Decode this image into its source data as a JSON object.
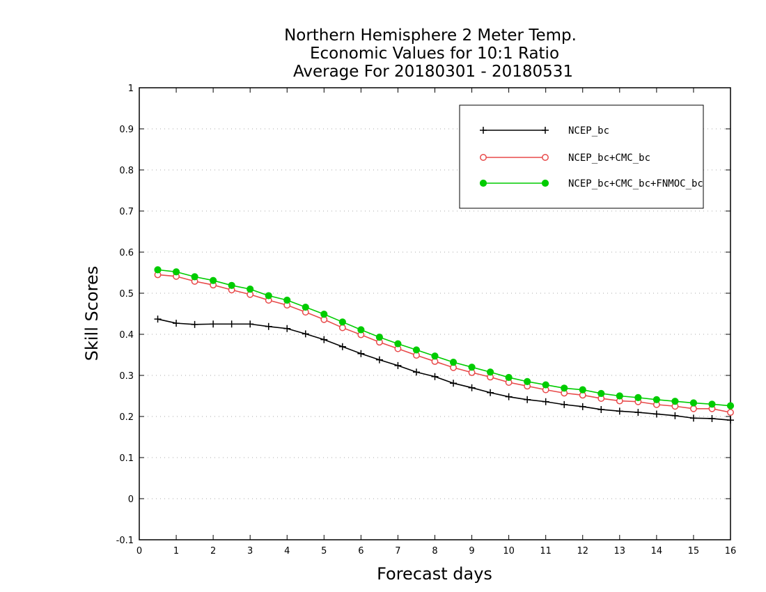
{
  "chart_data": {
    "type": "line",
    "title": [
      "Northern Hemisphere 2 Meter Temp.",
      "Economic Values for 10:1 Ratio",
      "Average For 20180301 - 20180531"
    ],
    "xlabel": "Forecast days",
    "ylabel": "Skill Scores",
    "xlim": [
      0,
      16
    ],
    "ylim": [
      -0.1,
      1
    ],
    "xticks": [
      "0",
      "1",
      "2",
      "3",
      "4",
      "5",
      "6",
      "7",
      "8",
      "9",
      "10",
      "11",
      "12",
      "13",
      "14",
      "15",
      "16"
    ],
    "yticks": [
      "-0.1",
      "0",
      "0.1",
      "0.2",
      "0.3",
      "0.4",
      "0.5",
      "0.6",
      "0.7",
      "0.8",
      "0.9",
      "1"
    ],
    "grid": true,
    "legend_position": "top-right",
    "x": [
      0.5,
      1,
      1.5,
      2,
      2.5,
      3,
      3.5,
      4,
      4.5,
      5,
      5.5,
      6,
      6.5,
      7,
      7.5,
      8,
      8.5,
      9,
      9.5,
      10,
      10.5,
      11,
      11.5,
      12,
      12.5,
      13,
      13.5,
      14,
      14.5,
      15,
      15.5,
      16
    ],
    "series": [
      {
        "name": "NCEP_bc",
        "color": "#000000",
        "marker": "plus",
        "values": [
          0.437,
          0.427,
          0.424,
          0.425,
          0.425,
          0.425,
          0.419,
          0.414,
          0.401,
          0.387,
          0.37,
          0.353,
          0.338,
          0.324,
          0.308,
          0.297,
          0.281,
          0.27,
          0.258,
          0.248,
          0.241,
          0.236,
          0.229,
          0.224,
          0.217,
          0.213,
          0.21,
          0.206,
          0.202,
          0.196,
          0.195,
          0.191
        ]
      },
      {
        "name": "NCEP_bc+CMC_bc",
        "color": "#e84a4a",
        "marker": "open-circle",
        "values": [
          0.545,
          0.541,
          0.529,
          0.52,
          0.508,
          0.497,
          0.483,
          0.471,
          0.454,
          0.436,
          0.416,
          0.399,
          0.381,
          0.365,
          0.349,
          0.334,
          0.319,
          0.307,
          0.296,
          0.283,
          0.274,
          0.265,
          0.257,
          0.252,
          0.244,
          0.238,
          0.236,
          0.229,
          0.225,
          0.219,
          0.219,
          0.21
        ]
      },
      {
        "name": "NCEP_bc+CMC_bc+FNMOC_bc",
        "color": "#00cc00",
        "marker": "filled-circle",
        "values": [
          0.557,
          0.552,
          0.54,
          0.531,
          0.519,
          0.51,
          0.494,
          0.483,
          0.466,
          0.449,
          0.43,
          0.411,
          0.393,
          0.377,
          0.362,
          0.347,
          0.332,
          0.32,
          0.308,
          0.295,
          0.285,
          0.277,
          0.269,
          0.265,
          0.256,
          0.25,
          0.246,
          0.241,
          0.237,
          0.233,
          0.23,
          0.226
        ]
      }
    ]
  }
}
